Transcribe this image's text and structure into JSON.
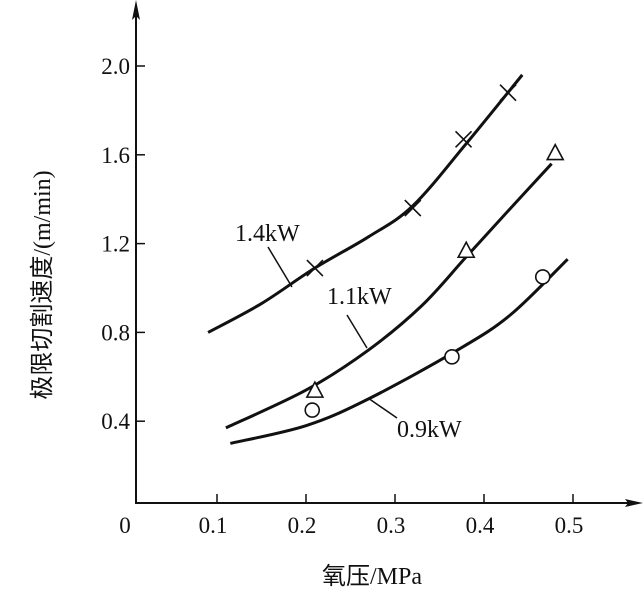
{
  "chart_data": {
    "type": "line",
    "title": "",
    "xlabel": "氧压/MPa",
    "ylabel": "极限切割速度/(m/min)",
    "xlim": [
      0,
      0.55
    ],
    "ylim": [
      0,
      2.2
    ],
    "xticks": [
      "0",
      "0.1",
      "0.2",
      "0.3",
      "0.4",
      "0.5"
    ],
    "xtick_values": [
      0,
      0.1,
      0.2,
      0.3,
      0.4,
      0.5
    ],
    "yticks": [
      "0.4",
      "0.8",
      "1.2",
      "1.6",
      "2.0"
    ],
    "ytick_values": [
      0.4,
      0.8,
      1.2,
      1.6,
      2.0
    ],
    "grid": false,
    "series": [
      {
        "name": "1.4kW",
        "marker": "x",
        "points": [
          [
            0.21,
            1.09
          ],
          [
            0.32,
            1.36
          ],
          [
            0.377,
            1.67
          ],
          [
            0.427,
            1.88
          ]
        ],
        "curve": [
          [
            0.09,
            0.8
          ],
          [
            0.15,
            0.93
          ],
          [
            0.21,
            1.09
          ],
          [
            0.27,
            1.23
          ],
          [
            0.32,
            1.37
          ],
          [
            0.38,
            1.65
          ],
          [
            0.443,
            1.96
          ]
        ]
      },
      {
        "name": "1.1kW",
        "marker": "triangle",
        "points": [
          [
            0.21,
            0.54
          ],
          [
            0.38,
            1.17
          ],
          [
            0.48,
            1.61
          ]
        ],
        "curve": [
          [
            0.11,
            0.37
          ],
          [
            0.2,
            0.54
          ],
          [
            0.27,
            0.72
          ],
          [
            0.33,
            0.92
          ],
          [
            0.38,
            1.14
          ],
          [
            0.43,
            1.36
          ],
          [
            0.476,
            1.56
          ]
        ]
      },
      {
        "name": "0.9kW",
        "marker": "circle",
        "points": [
          [
            0.207,
            0.45
          ],
          [
            0.364,
            0.69
          ],
          [
            0.466,
            1.05
          ]
        ],
        "curve": [
          [
            0.115,
            0.3
          ],
          [
            0.2,
            0.38
          ],
          [
            0.27,
            0.5
          ],
          [
            0.37,
            0.72
          ],
          [
            0.43,
            0.88
          ],
          [
            0.494,
            1.13
          ]
        ]
      }
    ]
  }
}
